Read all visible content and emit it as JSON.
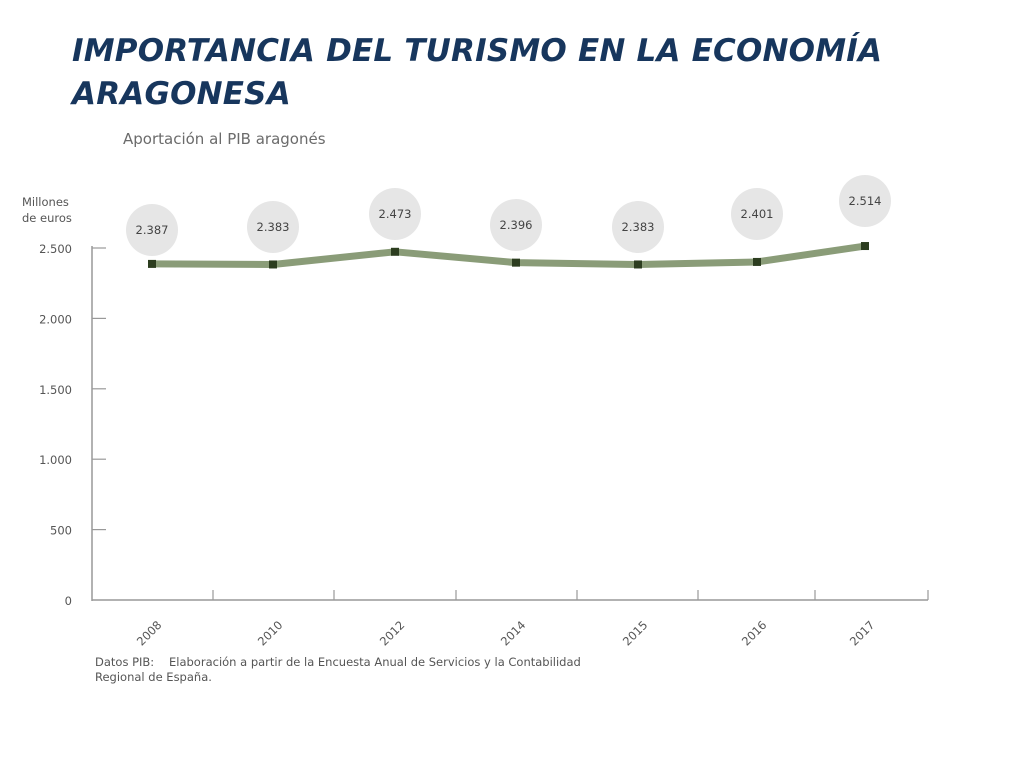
{
  "slide": {
    "title_line1": "IMPORTANCIA DEL TURISMO EN LA ECONOMÍA",
    "title_line2": "ARAGONESA"
  },
  "chart_data": {
    "type": "line",
    "title": "Aportación al PIB aragonés",
    "ylabel_line1": "Millones",
    "ylabel_line2": "de euros",
    "xlabel": "",
    "categories": [
      "2008",
      "2010",
      "2012",
      "2014",
      "2015",
      "2016",
      "2017"
    ],
    "values": [
      2387,
      2383,
      2473,
      2396,
      2383,
      2401,
      2514
    ],
    "value_labels": [
      "2.387",
      "2.383",
      "2.473",
      "2.396",
      "2.383",
      "2.401",
      "2.514"
    ],
    "ylim": [
      0,
      2500
    ],
    "yticks": [
      0,
      500,
      1000,
      1500,
      2000,
      2500
    ],
    "ytick_labels": [
      "0",
      "500",
      "1.000",
      "1.500",
      "2.000",
      "2.500"
    ],
    "grid": false,
    "colors": {
      "line": "#8a9c78",
      "marker": "#2c3d1f",
      "bubble": "#e6e6e6",
      "axis": "#999999"
    }
  },
  "source": {
    "label": "Datos PIB:",
    "text_line1": "Elaboración a partir de la Encuesta Anual de Servicios y la Contabilidad",
    "text_line2": "Regional de España."
  }
}
